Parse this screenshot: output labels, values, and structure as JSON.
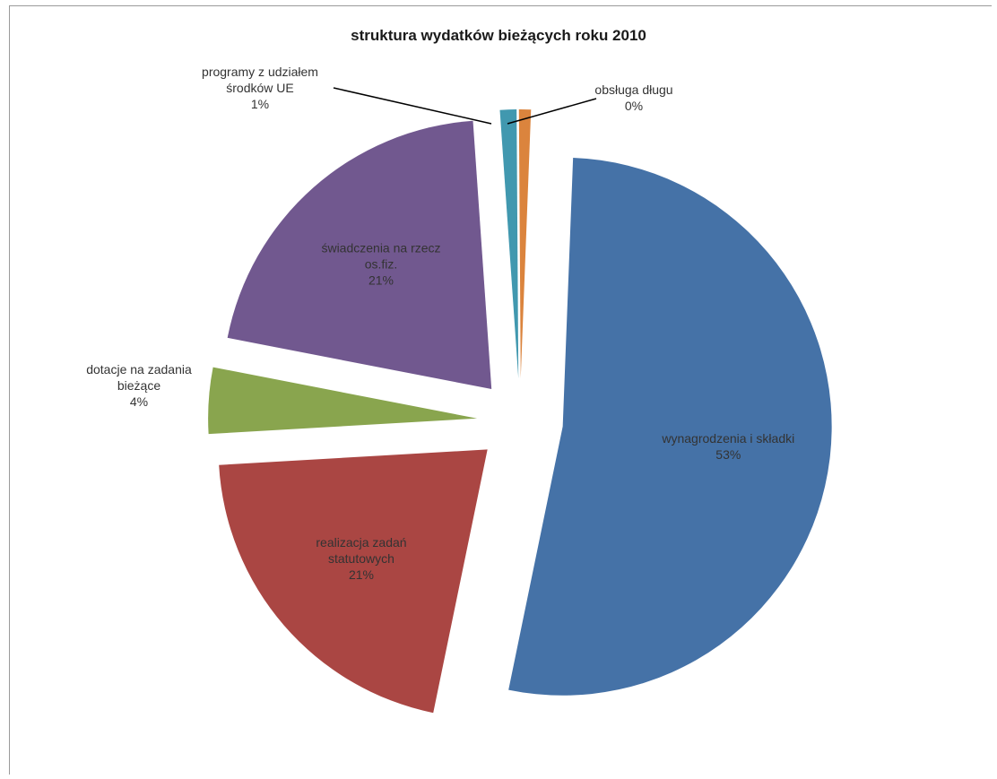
{
  "chart_data": {
    "type": "pie",
    "title": "struktura wydatków bieżących roku 2010",
    "slices": [
      {
        "name": "wynagrodzenia i składki",
        "value": 53,
        "label_lines": [
          "wynagrodzenia i składki",
          "53%"
        ],
        "color": "#4572a7"
      },
      {
        "name": "realizacja zadań statutowych",
        "value": 21,
        "label_lines": [
          "realizacja zadań",
          "statutowych",
          "21%"
        ],
        "color": "#aa4643"
      },
      {
        "name": "dotacje na zadania bieżące",
        "value": 4,
        "label_lines": [
          "dotacje na zadania",
          "bieżące",
          "4%"
        ],
        "color": "#89a54e"
      },
      {
        "name": "świadczenia na rzecz os.fiz.",
        "value": 21,
        "label_lines": [
          "świadczenia na rzecz",
          "os.fiz.",
          "21%"
        ],
        "color": "#71588f"
      },
      {
        "name": "programy z udziałem środków UE",
        "value": 1,
        "label_lines": [
          "programy z udziałem",
          "środków UE",
          "1%"
        ],
        "color": "#4198af"
      },
      {
        "name": "obsługa długu",
        "value": 0,
        "label_lines": [
          "obsługa długu",
          "0%"
        ],
        "color": "#db843d"
      }
    ],
    "legend": "none",
    "labels": "on-slice and outside with leader lines",
    "exploded": true
  }
}
